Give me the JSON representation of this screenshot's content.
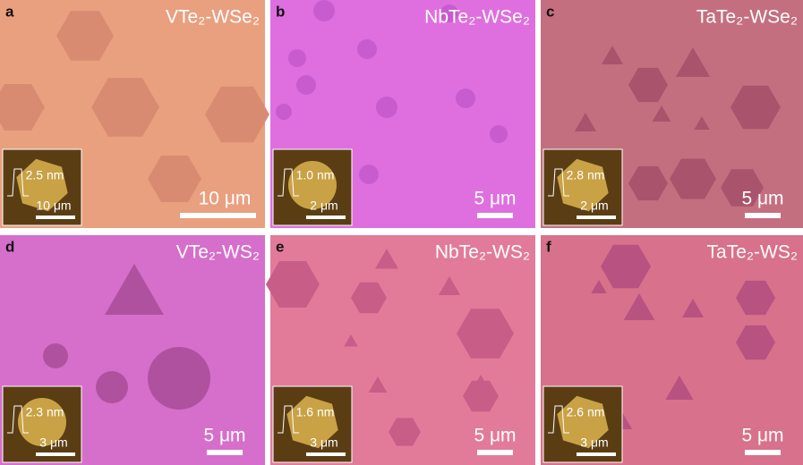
{
  "panels": [
    {
      "label": "a",
      "title": "VTe₂-WSe₂",
      "scale": "10 μm",
      "inset_height": "2.5 nm",
      "inset_scale": "10 μm"
    },
    {
      "label": "b",
      "title": "NbTe₂-WSe₂",
      "scale": "5 μm",
      "inset_height": "1.0 nm",
      "inset_scale": "2 μm"
    },
    {
      "label": "c",
      "title": "TaTe₂-WSe₂",
      "scale": "5 μm",
      "inset_height": "2.8 nm",
      "inset_scale": "2 μm"
    },
    {
      "label": "d",
      "title": "VTe₂-WS₂",
      "scale": "5 μm",
      "inset_height": "2.3 nm",
      "inset_scale": "3 μm"
    },
    {
      "label": "e",
      "title": "NbTe₂-WS₂",
      "scale": "5 μm",
      "inset_height": "1.6 nm",
      "inset_scale": "3 μm"
    },
    {
      "label": "f",
      "title": "TaTe₂-WS₂",
      "scale": "5 μm",
      "inset_height": "2.6 nm",
      "inset_scale": "3 μm"
    }
  ]
}
